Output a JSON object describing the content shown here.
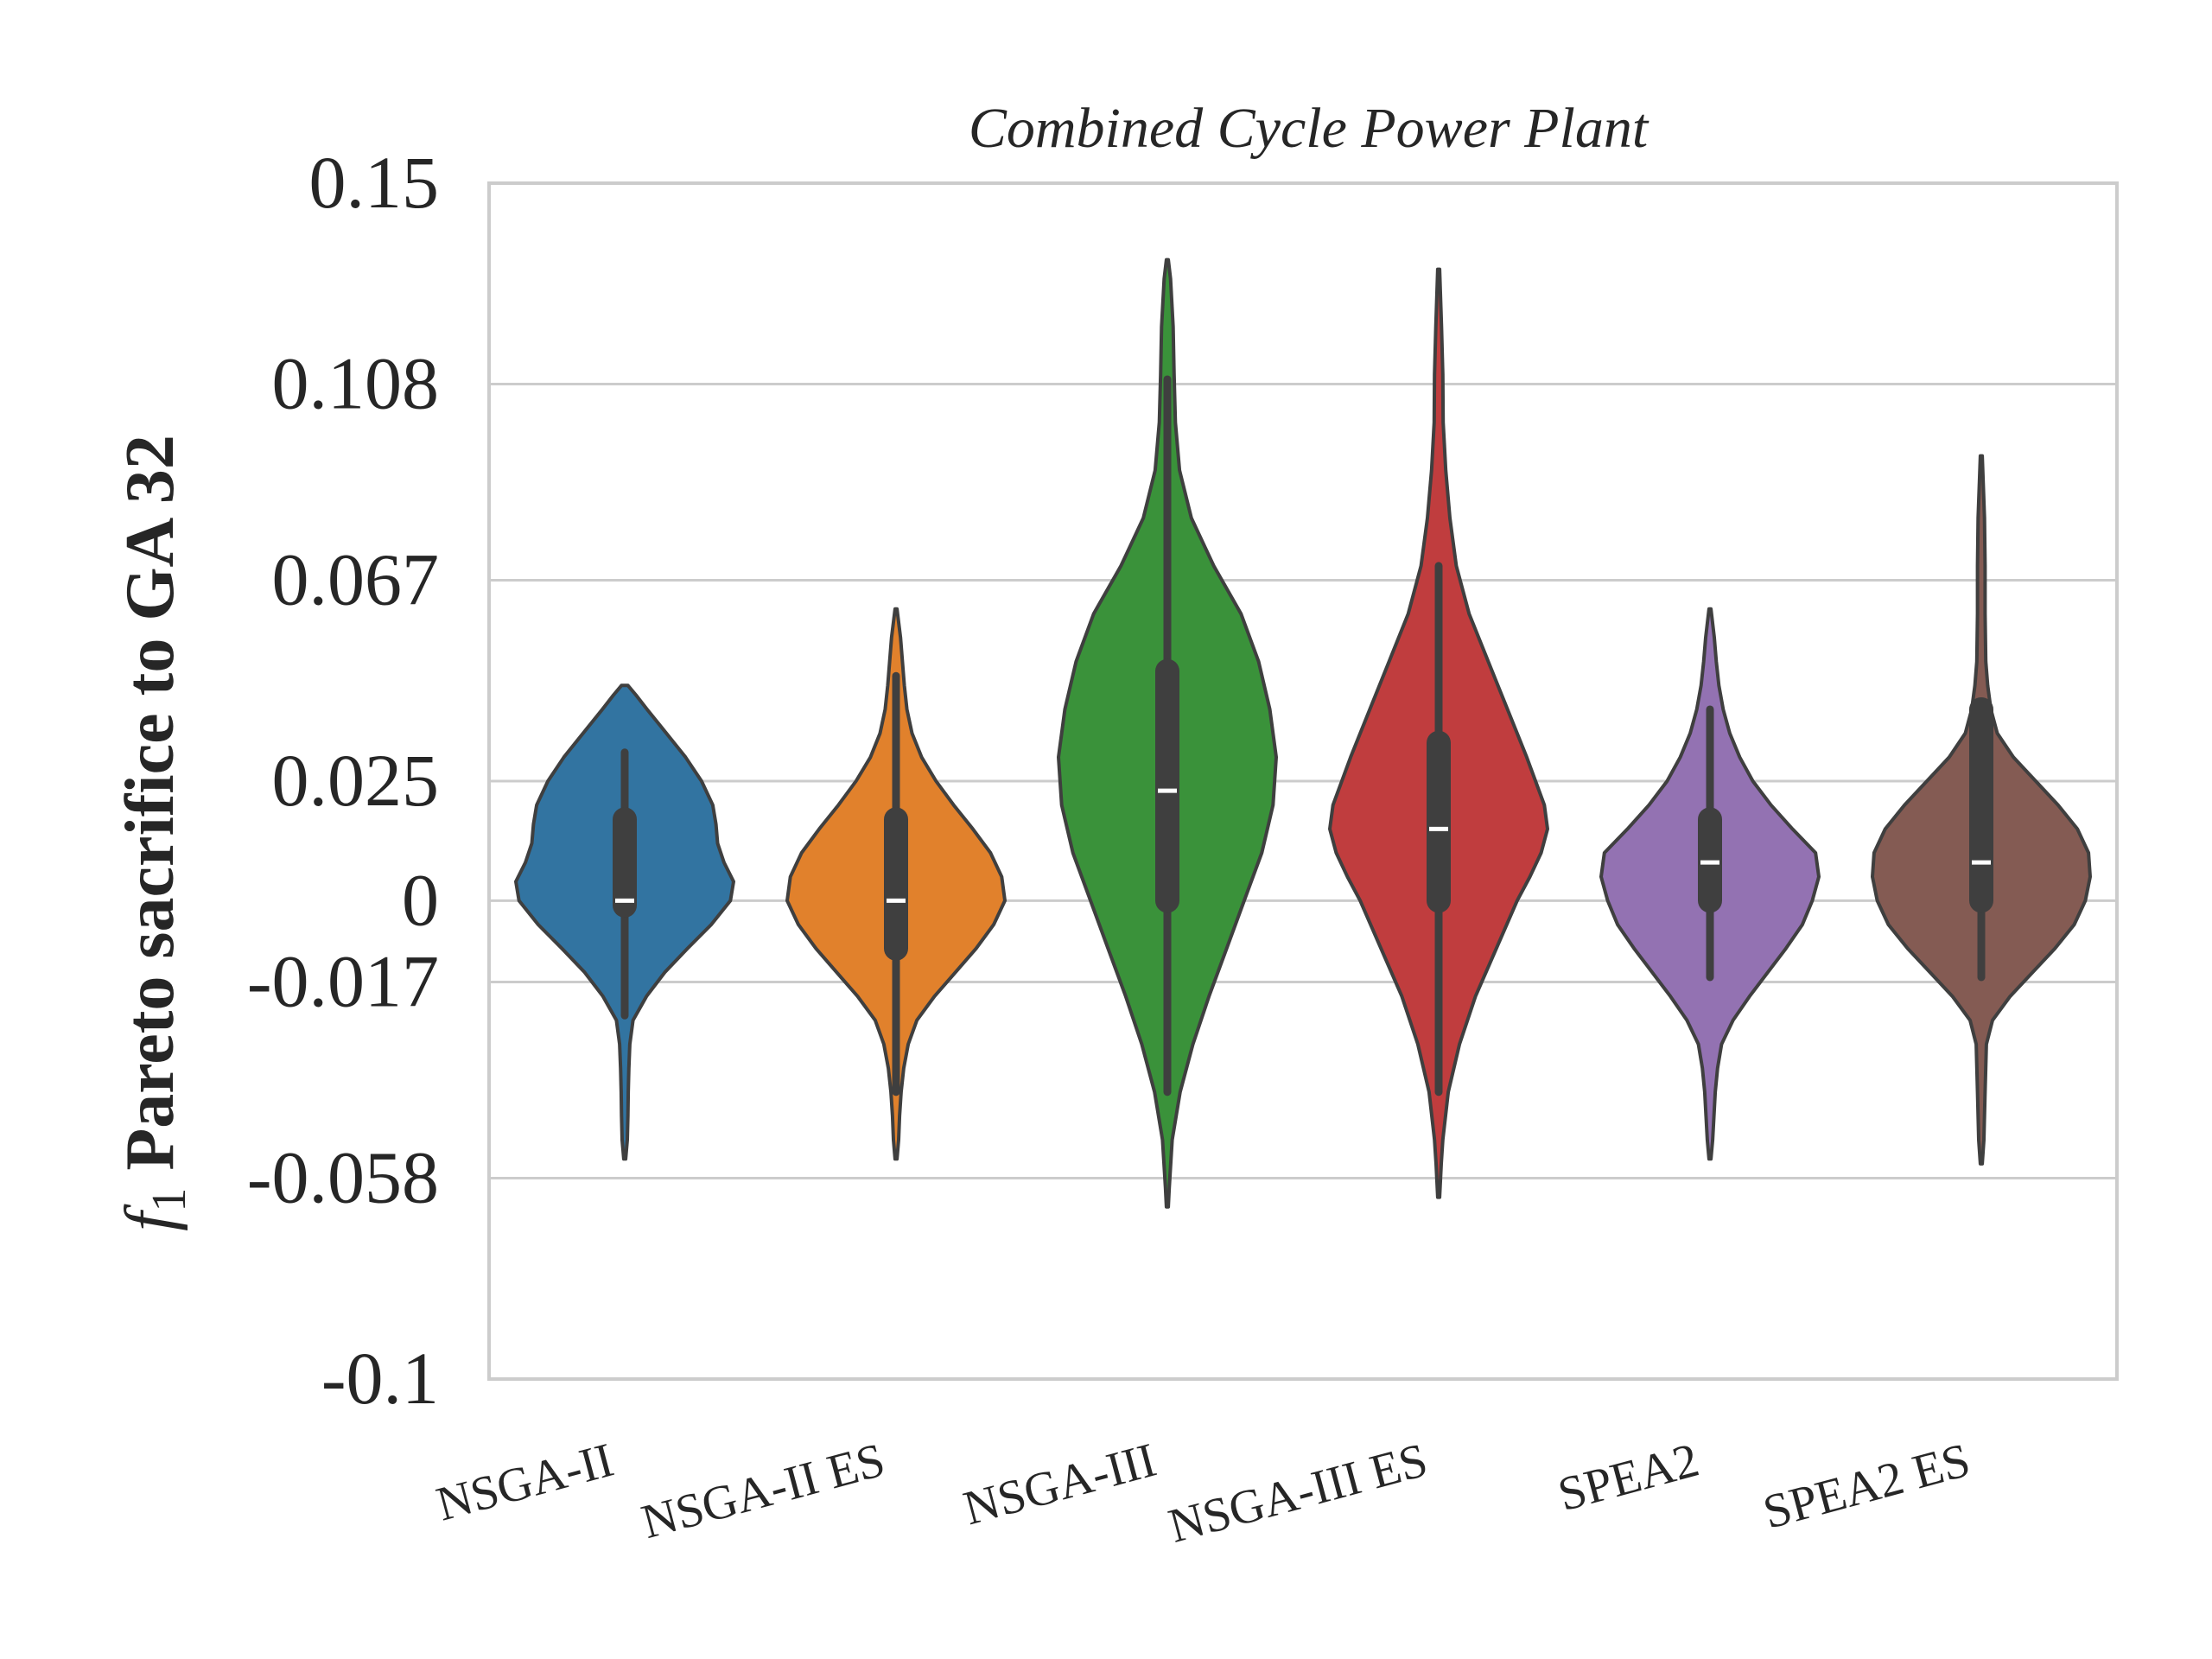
{
  "chart_data": {
    "type": "violin",
    "title": "Combined Cycle Power Plant",
    "ylabel_symbol": "f",
    "ylabel_subscript": "1",
    "ylabel": "Pareto sacrifice to GA 32",
    "ylim": [
      -0.1,
      0.15
    ],
    "yticks": [
      -0.1,
      -0.058,
      -0.017,
      0,
      0.025,
      0.067,
      0.108,
      0.15
    ],
    "ytick_labels": [
      "-0.1",
      "-0.058",
      "-0.017",
      "0",
      "0.025",
      "0.067",
      "0.108",
      "0.15"
    ],
    "grid": "horizontal",
    "categories": [
      "NSGA-II",
      "NSGA-II ES",
      "NSGA-III",
      "NSGA-III ES",
      "SPEA2",
      "SPEA2 ES"
    ],
    "series": [
      {
        "colour": "#3274a1",
        "min": -0.054,
        "max": 0.045,
        "q1": -0.001,
        "median": 0.0,
        "q3": 0.017,
        "whisker_low": -0.024,
        "whisker_high": 0.031,
        "profile": [
          [
            -0.054,
            0.3
          ],
          [
            -0.05,
            0.8
          ],
          [
            -0.045,
            1.0
          ],
          [
            -0.04,
            1.1
          ],
          [
            -0.035,
            1.3
          ],
          [
            -0.03,
            1.6
          ],
          [
            -0.025,
            2.6
          ],
          [
            -0.02,
            6.8
          ],
          [
            -0.015,
            12.5
          ],
          [
            -0.01,
            19.6
          ],
          [
            -0.005,
            27
          ],
          [
            0.0,
            33
          ],
          [
            0.004,
            34
          ],
          [
            0.008,
            31
          ],
          [
            0.012,
            29
          ],
          [
            0.016,
            28.5
          ],
          [
            0.02,
            27.5
          ],
          [
            0.025,
            24
          ],
          [
            0.03,
            19
          ],
          [
            0.035,
            13
          ],
          [
            0.04,
            7
          ],
          [
            0.043,
            3.5
          ],
          [
            0.045,
            1
          ]
        ]
      },
      {
        "colour": "#e1812c",
        "min": -0.054,
        "max": 0.061,
        "q1": -0.01,
        "median": 0.0,
        "q3": 0.017,
        "whisker_low": -0.04,
        "whisker_high": 0.047,
        "profile": [
          [
            -0.054,
            0.3
          ],
          [
            -0.05,
            0.8
          ],
          [
            -0.045,
            1.1
          ],
          [
            -0.04,
            1.6
          ],
          [
            -0.035,
            2.4
          ],
          [
            -0.03,
            3.8
          ],
          [
            -0.025,
            6.5
          ],
          [
            -0.02,
            12
          ],
          [
            -0.015,
            18.5
          ],
          [
            -0.01,
            25
          ],
          [
            -0.005,
            30.5
          ],
          [
            0.0,
            34
          ],
          [
            0.005,
            33
          ],
          [
            0.01,
            29.5
          ],
          [
            0.015,
            24
          ],
          [
            0.02,
            18
          ],
          [
            0.025,
            12.5
          ],
          [
            0.03,
            8
          ],
          [
            0.035,
            5
          ],
          [
            0.04,
            3.4
          ],
          [
            0.045,
            2.6
          ],
          [
            0.05,
            2
          ],
          [
            0.055,
            1.4
          ],
          [
            0.061,
            0.3
          ]
        ]
      },
      {
        "colour": "#3a923a",
        "min": -0.064,
        "max": 0.134,
        "q1": 0.0,
        "median": 0.023,
        "q3": 0.048,
        "whisker_low": -0.04,
        "whisker_high": 0.109,
        "profile": [
          [
            -0.064,
            0.3
          ],
          [
            -0.06,
            0.6
          ],
          [
            -0.05,
            1.5
          ],
          [
            -0.04,
            4
          ],
          [
            -0.03,
            8
          ],
          [
            -0.02,
            13
          ],
          [
            -0.01,
            18.5
          ],
          [
            0.0,
            24
          ],
          [
            0.01,
            29.5
          ],
          [
            0.02,
            33
          ],
          [
            0.03,
            34
          ],
          [
            0.04,
            32
          ],
          [
            0.05,
            28.5
          ],
          [
            0.06,
            23
          ],
          [
            0.07,
            14.5
          ],
          [
            0.08,
            7.5
          ],
          [
            0.09,
            3.8
          ],
          [
            0.1,
            2.5
          ],
          [
            0.11,
            2.1
          ],
          [
            0.12,
            1.8
          ],
          [
            0.13,
            1
          ],
          [
            0.134,
            0.3
          ]
        ]
      },
      {
        "colour": "#c03d3e",
        "min": -0.062,
        "max": 0.132,
        "q1": 0.0,
        "median": 0.015,
        "q3": 0.033,
        "whisker_low": -0.04,
        "whisker_high": 0.07,
        "profile": [
          [
            -0.062,
            0.3
          ],
          [
            -0.055,
            0.8
          ],
          [
            -0.05,
            1.3
          ],
          [
            -0.04,
            3
          ],
          [
            -0.03,
            6.5
          ],
          [
            -0.02,
            11.5
          ],
          [
            -0.01,
            18
          ],
          [
            0.0,
            24.5
          ],
          [
            0.005,
            28.5
          ],
          [
            0.01,
            32
          ],
          [
            0.015,
            34
          ],
          [
            0.02,
            33
          ],
          [
            0.03,
            27.5
          ],
          [
            0.04,
            21.5
          ],
          [
            0.05,
            15.5
          ],
          [
            0.06,
            9.5
          ],
          [
            0.07,
            5.5
          ],
          [
            0.08,
            3.5
          ],
          [
            0.09,
            2.2
          ],
          [
            0.1,
            1.4
          ],
          [
            0.11,
            1.3
          ],
          [
            0.12,
            0.9
          ],
          [
            0.132,
            0.3
          ]
        ]
      },
      {
        "colour": "#9372b2",
        "min": -0.054,
        "max": 0.061,
        "q1": 0.0,
        "median": 0.008,
        "q3": 0.017,
        "whisker_low": -0.016,
        "whisker_high": 0.04,
        "profile": [
          [
            -0.054,
            0.3
          ],
          [
            -0.05,
            0.8
          ],
          [
            -0.045,
            1.2
          ],
          [
            -0.04,
            1.6
          ],
          [
            -0.035,
            2.3
          ],
          [
            -0.03,
            3.5
          ],
          [
            -0.025,
            7
          ],
          [
            -0.02,
            12
          ],
          [
            -0.015,
            17.5
          ],
          [
            -0.01,
            23
          ],
          [
            -0.005,
            28
          ],
          [
            0.0,
            31
          ],
          [
            0.005,
            33
          ],
          [
            0.01,
            32
          ],
          [
            0.015,
            25
          ],
          [
            0.02,
            18.5
          ],
          [
            0.025,
            13
          ],
          [
            0.03,
            9
          ],
          [
            0.035,
            6
          ],
          [
            0.04,
            4
          ],
          [
            0.045,
            2.7
          ],
          [
            0.05,
            1.9
          ],
          [
            0.055,
            1.3
          ],
          [
            0.061,
            0.3
          ]
        ]
      },
      {
        "colour": "#845b53",
        "min": -0.055,
        "max": 0.093,
        "q1": 0.0,
        "median": 0.008,
        "q3": 0.04,
        "whisker_low": -0.016,
        "whisker_high": 0.04,
        "profile": [
          [
            -0.055,
            0.3
          ],
          [
            -0.05,
            0.8
          ],
          [
            -0.04,
            1.2
          ],
          [
            -0.03,
            1.6
          ],
          [
            -0.025,
            3.5
          ],
          [
            -0.02,
            9
          ],
          [
            -0.015,
            16
          ],
          [
            -0.01,
            23
          ],
          [
            -0.005,
            29
          ],
          [
            0.0,
            32.5
          ],
          [
            0.005,
            34
          ],
          [
            0.01,
            33.5
          ],
          [
            0.015,
            30
          ],
          [
            0.02,
            24
          ],
          [
            0.025,
            17
          ],
          [
            0.03,
            10
          ],
          [
            0.035,
            5
          ],
          [
            0.04,
            3
          ],
          [
            0.045,
            2
          ],
          [
            0.05,
            1.4
          ],
          [
            0.06,
            1.2
          ],
          [
            0.07,
            1.2
          ],
          [
            0.08,
            1
          ],
          [
            0.093,
            0.3
          ]
        ]
      }
    ]
  }
}
